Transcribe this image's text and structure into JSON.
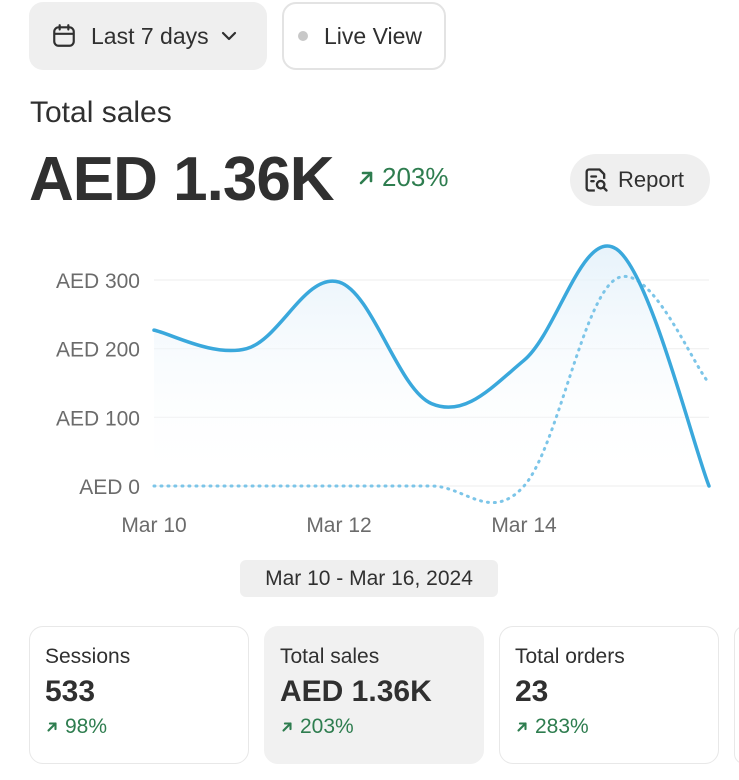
{
  "toolbar": {
    "date_range_label": "Last 7 days",
    "live_view_label": "Live View"
  },
  "summary": {
    "label": "Total sales",
    "value": "AED 1.36K",
    "change": "203%",
    "report_label": "Report"
  },
  "chart_data": {
    "type": "line",
    "x": [
      "Mar 10",
      "Mar 11",
      "Mar 12",
      "Mar 13",
      "Mar 14",
      "Mar 15",
      "Mar 16"
    ],
    "x_tick_labels": [
      "Mar 10",
      "Mar 12",
      "Mar 14"
    ],
    "y_tick_labels": [
      "AED 300",
      "AED 200",
      "AED 100",
      "AED 0"
    ],
    "ylim": [
      0,
      300
    ],
    "series": [
      {
        "style": "solid",
        "color": "#3aa8dc",
        "values": [
          227,
          200,
          297,
          120,
          183,
          345,
          0
        ]
      },
      {
        "style": "dotted",
        "color": "#7cc5e8",
        "values": [
          0,
          0,
          0,
          0,
          0,
          302,
          150
        ]
      }
    ],
    "grid": true,
    "legend": "none"
  },
  "date_range_chip": "Mar 10 - Mar 16, 2024",
  "cards": [
    {
      "label": "Sessions",
      "value": "533",
      "change": "98%"
    },
    {
      "label": "Total sales",
      "value": "AED 1.36K",
      "change": "203%"
    },
    {
      "label": "Total orders",
      "value": "23",
      "change": "283%"
    }
  ],
  "colors": {
    "positive": "#2e7d4f",
    "line": "#3aa8dc",
    "line_dotted": "#7cc5e8"
  }
}
